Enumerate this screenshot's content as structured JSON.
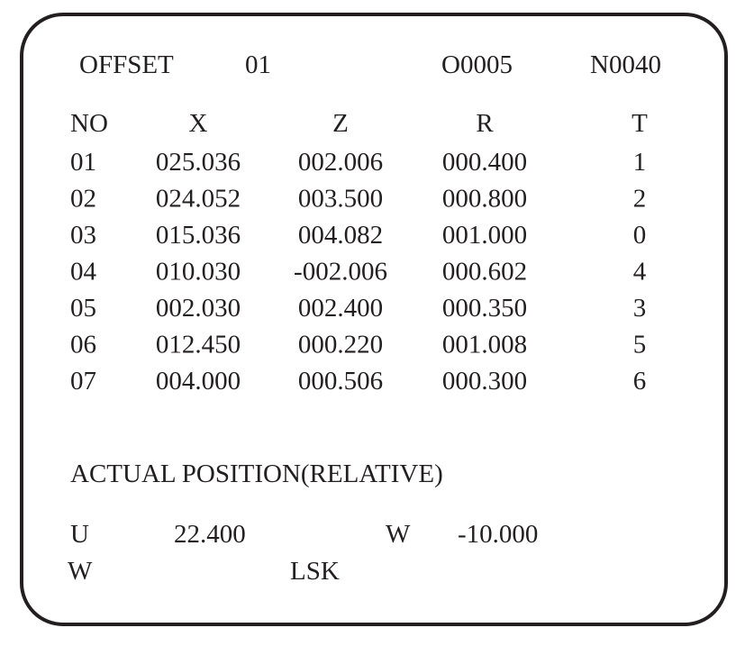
{
  "header": {
    "title": "OFFSET",
    "offset_no": "01",
    "program": "O0005",
    "sequence": "N0040"
  },
  "table": {
    "columns": [
      "NO",
      "X",
      "Z",
      "R",
      "T"
    ],
    "rows": [
      [
        "01",
        "025.036",
        "002.006",
        "000.400",
        "1"
      ],
      [
        "02",
        "024.052",
        "003.500",
        "000.800",
        "2"
      ],
      [
        "03",
        "015.036",
        "004.082",
        "001.000",
        "0"
      ],
      [
        "04",
        "010.030",
        "-002.006",
        "000.602",
        "4"
      ],
      [
        "05",
        "002.030",
        "002.400",
        "000.350",
        "3"
      ],
      [
        "06",
        "012.450",
        "000.220",
        "001.008",
        "5"
      ],
      [
        "07",
        "004.000",
        "000.506",
        "000.300",
        "6"
      ]
    ]
  },
  "position": {
    "title": "ACTUAL POSITION(RELATIVE)",
    "u_label": "U",
    "u_value": "22.400",
    "w_label": "W",
    "w_value": "-10.000"
  },
  "status": {
    "label": "W",
    "mode": "LSK"
  }
}
